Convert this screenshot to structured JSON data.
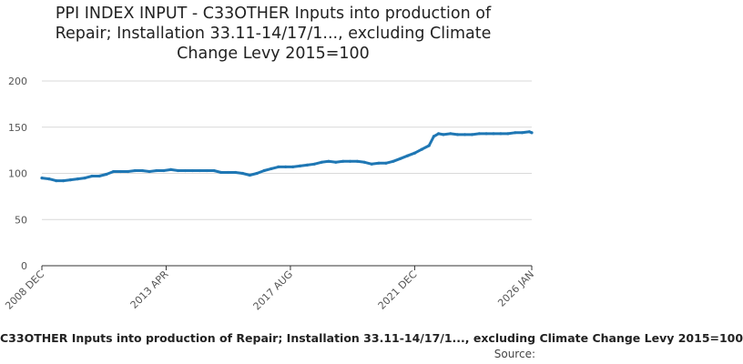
{
  "title_lines": [
    "PPI INDEX INPUT - C33OTHER Inputs into production of",
    "Repair; Installation 33.11-14/17/1..., excluding Climate",
    "Change Levy 2015=100"
  ],
  "legend_label": "C33OTHER Inputs into production of Repair; Installation 33.11-14/17/1..., excluding Climate Change Levy 2015=100",
  "source_label": "Source:",
  "colors": {
    "series": "#1f77b4",
    "grid": "#d9d9d9",
    "axis": "#333333",
    "text": "#555555"
  },
  "chart_data": {
    "type": "line",
    "title": "PPI INDEX INPUT - C33OTHER Inputs into production of Repair; Installation 33.11-14/17/1..., excluding Climate Change Levy 2015=100",
    "xlabel": "",
    "ylabel": "",
    "ylim": [
      0,
      200
    ],
    "yticks": [
      0,
      50,
      100,
      150,
      200
    ],
    "xlim": [
      "2008-12",
      "2026-01"
    ],
    "xtick_labels": [
      "2008 DEC",
      "2013 APR",
      "2017 AUG",
      "2021 DEC",
      "2026 JAN"
    ],
    "grid": true,
    "legend_position": "bottom",
    "series": [
      {
        "name": "C33OTHER Inputs into production of Repair; Installation 33.11-14/17/1..., excluding Climate Change Levy 2015=100",
        "points": [
          [
            "2008-12",
            95
          ],
          [
            "2009-03",
            94
          ],
          [
            "2009-06",
            92
          ],
          [
            "2009-09",
            92
          ],
          [
            "2009-12",
            93
          ],
          [
            "2010-03",
            94
          ],
          [
            "2010-06",
            95
          ],
          [
            "2010-09",
            97
          ],
          [
            "2010-12",
            97
          ],
          [
            "2011-03",
            99
          ],
          [
            "2011-06",
            102
          ],
          [
            "2011-09",
            102
          ],
          [
            "2011-12",
            102
          ],
          [
            "2012-03",
            103
          ],
          [
            "2012-06",
            103
          ],
          [
            "2012-09",
            102
          ],
          [
            "2012-12",
            103
          ],
          [
            "2013-03",
            103
          ],
          [
            "2013-06",
            104
          ],
          [
            "2013-09",
            103
          ],
          [
            "2013-12",
            103
          ],
          [
            "2014-03",
            103
          ],
          [
            "2014-06",
            103
          ],
          [
            "2014-09",
            103
          ],
          [
            "2014-12",
            103
          ],
          [
            "2015-03",
            101
          ],
          [
            "2015-06",
            101
          ],
          [
            "2015-09",
            101
          ],
          [
            "2015-12",
            100
          ],
          [
            "2016-03",
            98
          ],
          [
            "2016-06",
            100
          ],
          [
            "2016-09",
            103
          ],
          [
            "2016-12",
            105
          ],
          [
            "2017-03",
            107
          ],
          [
            "2017-06",
            107
          ],
          [
            "2017-09",
            107
          ],
          [
            "2017-12",
            108
          ],
          [
            "2018-03",
            109
          ],
          [
            "2018-06",
            110
          ],
          [
            "2018-09",
            112
          ],
          [
            "2018-12",
            113
          ],
          [
            "2019-03",
            112
          ],
          [
            "2019-06",
            113
          ],
          [
            "2019-09",
            113
          ],
          [
            "2019-12",
            113
          ],
          [
            "2020-03",
            112
          ],
          [
            "2020-06",
            110
          ],
          [
            "2020-09",
            111
          ],
          [
            "2020-12",
            111
          ],
          [
            "2021-03",
            113
          ],
          [
            "2021-06",
            116
          ],
          [
            "2021-09",
            119
          ],
          [
            "2021-12",
            122
          ],
          [
            "2022-03",
            126
          ],
          [
            "2022-06",
            130
          ],
          [
            "2022-08",
            140
          ],
          [
            "2022-10",
            143
          ],
          [
            "2022-12",
            142
          ],
          [
            "2023-03",
            143
          ],
          [
            "2023-06",
            142
          ],
          [
            "2023-09",
            142
          ],
          [
            "2023-12",
            142
          ],
          [
            "2024-03",
            143
          ],
          [
            "2024-06",
            143
          ],
          [
            "2024-09",
            143
          ],
          [
            "2024-12",
            143
          ],
          [
            "2025-03",
            143
          ],
          [
            "2025-06",
            144
          ],
          [
            "2025-09",
            144
          ],
          [
            "2025-12",
            145
          ],
          [
            "2026-01",
            144
          ]
        ]
      }
    ]
  }
}
